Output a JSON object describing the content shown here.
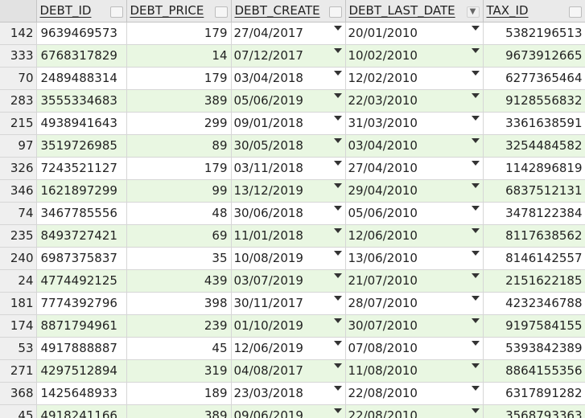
{
  "columns": [
    {
      "key": "debt_id",
      "label": "DEBT_ID"
    },
    {
      "key": "debt_price",
      "label": "DEBT_PRICE"
    },
    {
      "key": "debt_create",
      "label": "DEBT_CREATE"
    },
    {
      "key": "debt_last_date",
      "label": "DEBT_LAST_DATE"
    },
    {
      "key": "tax_id",
      "label": "TAX_ID"
    }
  ],
  "sorted_column": "debt_last_date",
  "rows": [
    {
      "row": "142",
      "debt_id": "9639469573",
      "debt_price": "179",
      "debt_create": "27/04/2017",
      "debt_last_date": "20/01/2010",
      "tax_id": "5382196513"
    },
    {
      "row": "333",
      "debt_id": "6768317829",
      "debt_price": "14",
      "debt_create": "07/12/2017",
      "debt_last_date": "10/02/2010",
      "tax_id": "9673912665"
    },
    {
      "row": "70",
      "debt_id": "2489488314",
      "debt_price": "179",
      "debt_create": "03/04/2018",
      "debt_last_date": "12/02/2010",
      "tax_id": "6277365464"
    },
    {
      "row": "283",
      "debt_id": "3555334683",
      "debt_price": "389",
      "debt_create": "05/06/2019",
      "debt_last_date": "22/03/2010",
      "tax_id": "9128556832"
    },
    {
      "row": "215",
      "debt_id": "4938941643",
      "debt_price": "299",
      "debt_create": "09/01/2018",
      "debt_last_date": "31/03/2010",
      "tax_id": "3361638591"
    },
    {
      "row": "97",
      "debt_id": "3519726985",
      "debt_price": "89",
      "debt_create": "30/05/2018",
      "debt_last_date": "03/04/2010",
      "tax_id": "3254484582"
    },
    {
      "row": "326",
      "debt_id": "7243521127",
      "debt_price": "179",
      "debt_create": "03/11/2018",
      "debt_last_date": "27/04/2010",
      "tax_id": "1142896819"
    },
    {
      "row": "346",
      "debt_id": "1621897299",
      "debt_price": "99",
      "debt_create": "13/12/2019",
      "debt_last_date": "29/04/2010",
      "tax_id": "6837512131"
    },
    {
      "row": "74",
      "debt_id": "3467785556",
      "debt_price": "48",
      "debt_create": "30/06/2018",
      "debt_last_date": "05/06/2010",
      "tax_id": "3478122384"
    },
    {
      "row": "235",
      "debt_id": "8493727421",
      "debt_price": "69",
      "debt_create": "11/01/2018",
      "debt_last_date": "12/06/2010",
      "tax_id": "8117638562"
    },
    {
      "row": "240",
      "debt_id": "6987375837",
      "debt_price": "35",
      "debt_create": "10/08/2019",
      "debt_last_date": "13/06/2010",
      "tax_id": "8146142557"
    },
    {
      "row": "24",
      "debt_id": "4774492125",
      "debt_price": "439",
      "debt_create": "03/07/2019",
      "debt_last_date": "21/07/2010",
      "tax_id": "2151622185"
    },
    {
      "row": "181",
      "debt_id": "7774392796",
      "debt_price": "398",
      "debt_create": "30/11/2017",
      "debt_last_date": "28/07/2010",
      "tax_id": "4232346788"
    },
    {
      "row": "174",
      "debt_id": "8871794961",
      "debt_price": "239",
      "debt_create": "01/10/2019",
      "debt_last_date": "30/07/2010",
      "tax_id": "9197584155"
    },
    {
      "row": "53",
      "debt_id": "4917888887",
      "debt_price": "45",
      "debt_create": "12/06/2019",
      "debt_last_date": "07/08/2010",
      "tax_id": "5393842389"
    },
    {
      "row": "271",
      "debt_id": "4297512894",
      "debt_price": "319",
      "debt_create": "04/08/2017",
      "debt_last_date": "11/08/2010",
      "tax_id": "8864155356"
    },
    {
      "row": "368",
      "debt_id": "1425648933",
      "debt_price": "189",
      "debt_create": "23/03/2018",
      "debt_last_date": "22/08/2010",
      "tax_id": "6317891282"
    },
    {
      "row": "45",
      "debt_id": "4918241166",
      "debt_price": "389",
      "debt_create": "09/06/2019",
      "debt_last_date": "22/08/2010",
      "tax_id": "3568793363"
    }
  ],
  "colors": {
    "alt_row": "#e9f7e2",
    "header_bg": "#eaeaea",
    "grid_line": "#d6d6d6"
  }
}
